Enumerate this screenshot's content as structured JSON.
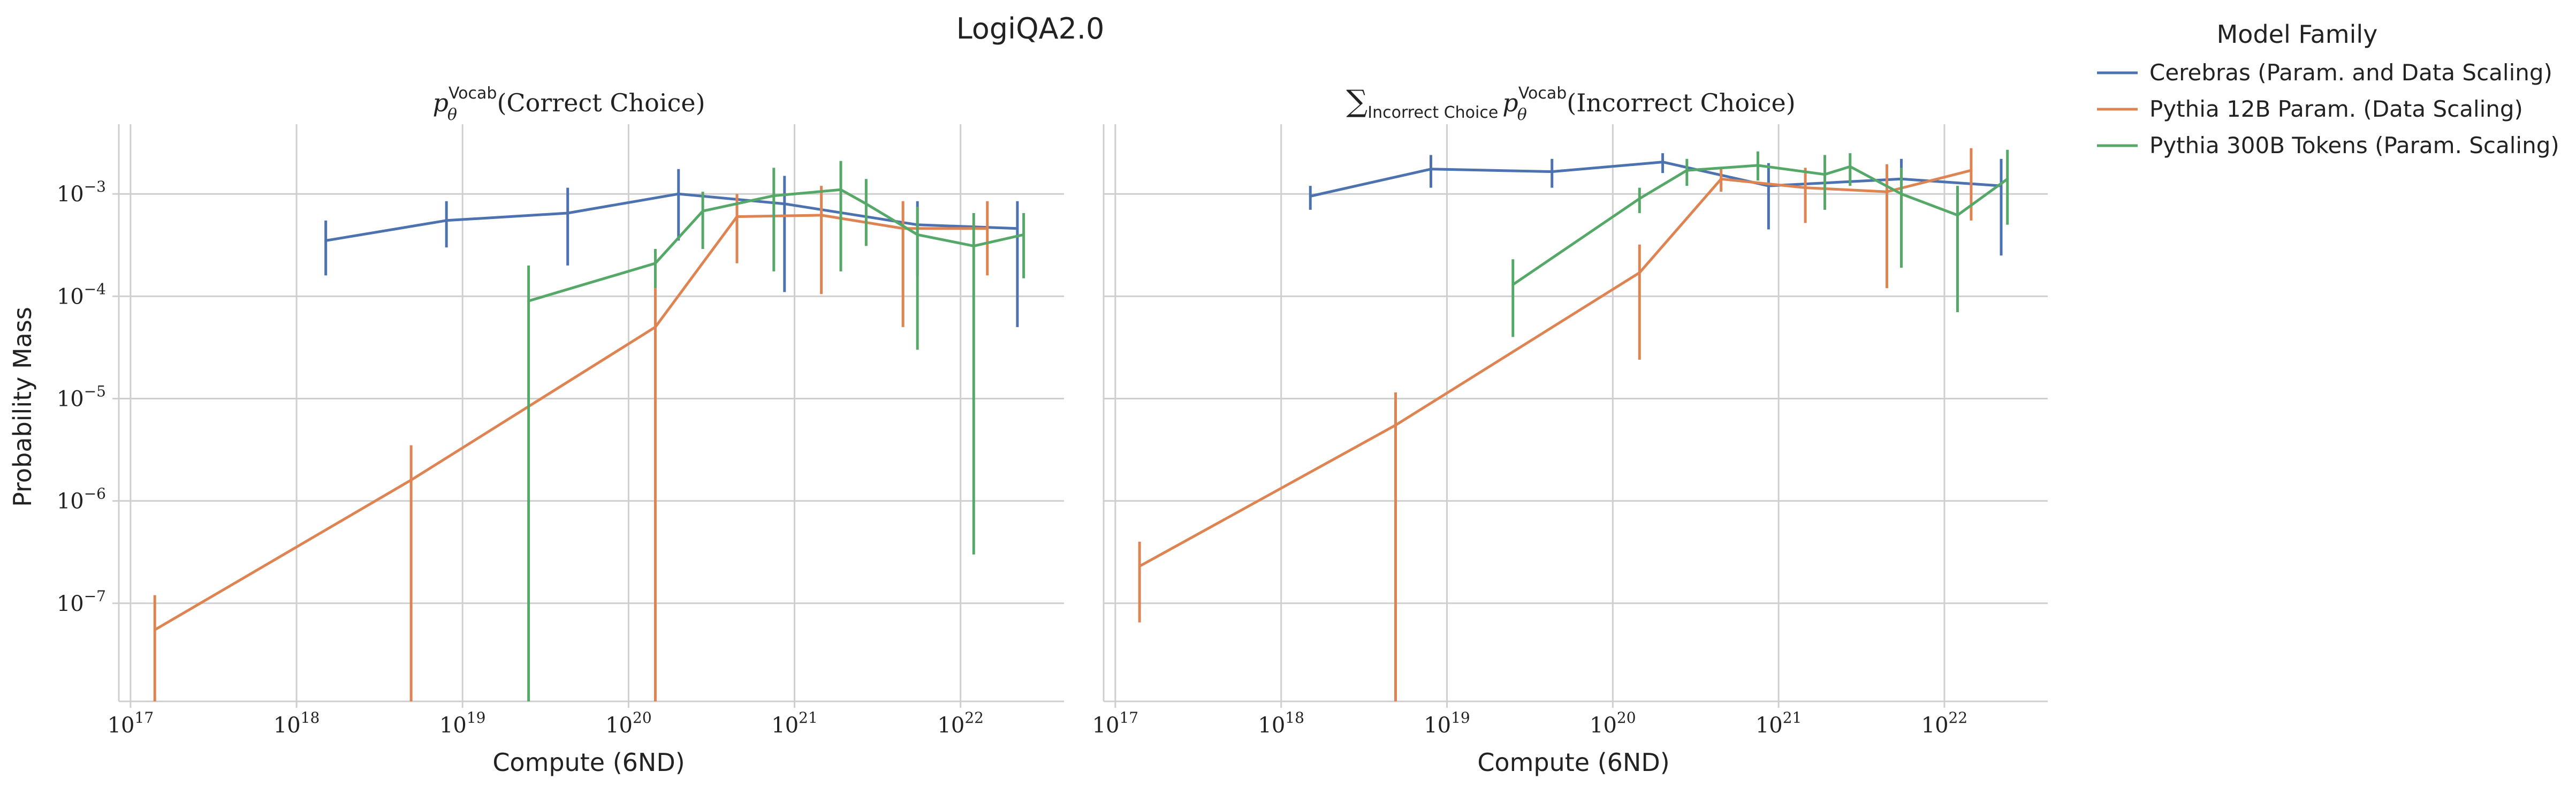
{
  "figure": {
    "title": "LogiQA2.0",
    "legend_title": "Model Family",
    "legend_placement": "outside-right",
    "y_axis_label": "Probability Mass"
  },
  "chart_data": [
    {
      "type": "line",
      "title": "p_θ^Vocab(Correct Choice)",
      "xlabel": "Compute (6ND)",
      "ylabel": "Probability Mass",
      "xscale": "log",
      "yscale": "log",
      "xlim": [
        8.5e+16,
        4.2e+22
      ],
      "ylim": [
        1.1e-08,
        0.0048
      ],
      "grid": true,
      "xticks": [
        "10^17",
        "10^18",
        "10^19",
        "10^20",
        "10^21",
        "10^22"
      ],
      "yticks": [
        "10^-7",
        "10^-6",
        "10^-5",
        "10^-4",
        "10^-3"
      ],
      "series": [
        {
          "name": "Cerebras (Param. and Data Scaling)",
          "color": "#4c72b0",
          "points": [
            {
              "x": 1.5e+18,
              "y": 0.00035,
              "lo": 0.00016,
              "hi": 0.00055
            },
            {
              "x": 8e+18,
              "y": 0.00055,
              "lo": 0.0003,
              "hi": 0.00085
            },
            {
              "x": 4.3e+19,
              "y": 0.00065,
              "lo": 0.0002,
              "hi": 0.00115
            },
            {
              "x": 2e+20,
              "y": 0.001,
              "lo": 0.00035,
              "hi": 0.00175
            },
            {
              "x": 8.7e+20,
              "y": 0.0008,
              "lo": 0.00011,
              "hi": 0.0015
            },
            {
              "x": 5.5e+21,
              "y": 0.0005,
              "lo": 0.00016,
              "hi": 0.00085
            },
            {
              "x": 2.2e+22,
              "y": 0.00046,
              "lo": 5e-05,
              "hi": 0.00085
            }
          ]
        },
        {
          "name": "Pythia 12B Param. (Data Scaling)",
          "color": "#dd8452",
          "points": [
            {
              "x": 1.4e+17,
              "y": 5.5e-08,
              "lo": 1e-08,
              "hi": 1.2e-07
            },
            {
              "x": 4.9e+18,
              "y": 1.6e-06,
              "lo": 1e-08,
              "hi": 3.5e-06
            },
            {
              "x": 1.45e+20,
              "y": 5e-05,
              "lo": 1e-08,
              "hi": 0.00012
            },
            {
              "x": 4.5e+20,
              "y": 0.0006,
              "lo": 0.00021,
              "hi": 0.001
            },
            {
              "x": 1.45e+21,
              "y": 0.00062,
              "lo": 0.000105,
              "hi": 0.0012
            },
            {
              "x": 4.5e+21,
              "y": 0.00046,
              "lo": 5e-05,
              "hi": 0.00085
            },
            {
              "x": 1.45e+22,
              "y": 0.00046,
              "lo": 0.00016,
              "hi": 0.00085
            }
          ]
        },
        {
          "name": "Pythia 300B Tokens (Param. Scaling)",
          "color": "#55a868",
          "points": [
            {
              "x": 2.5e+19,
              "y": 9e-05,
              "lo": 1e-08,
              "hi": 0.0002
            },
            {
              "x": 1.45e+20,
              "y": 0.00021,
              "lo": 0.00012,
              "hi": 0.00029
            },
            {
              "x": 2.8e+20,
              "y": 0.00068,
              "lo": 0.00029,
              "hi": 0.00105
            },
            {
              "x": 7.5e+20,
              "y": 0.00096,
              "lo": 0.000175,
              "hi": 0.0018
            },
            {
              "x": 1.9e+21,
              "y": 0.0011,
              "lo": 0.000175,
              "hi": 0.0021
            },
            {
              "x": 2.7e+21,
              "y": 0.0008,
              "lo": 0.00031,
              "hi": 0.0014
            },
            {
              "x": 5.5e+21,
              "y": 0.0004,
              "lo": 3e-05,
              "hi": 0.00075
            },
            {
              "x": 1.2e+22,
              "y": 0.00031,
              "lo": 3e-07,
              "hi": 0.00065
            },
            {
              "x": 2.4e+22,
              "y": 0.0004,
              "lo": 0.00015,
              "hi": 0.00065
            }
          ]
        }
      ]
    },
    {
      "type": "line",
      "title": "∑_Incorrect Choice p_θ^Vocab(Incorrect Choice)",
      "xlabel": "Compute (6ND)",
      "ylabel": "",
      "xscale": "log",
      "yscale": "log",
      "xlim": [
        8.5e+16,
        4.2e+22
      ],
      "ylim": [
        1.1e-08,
        0.0048
      ],
      "grid": true,
      "xticks": [
        "10^17",
        "10^18",
        "10^19",
        "10^20",
        "10^21",
        "10^22"
      ],
      "yticks": [],
      "series": [
        {
          "name": "Cerebras (Param. and Data Scaling)",
          "color": "#4c72b0",
          "points": [
            {
              "x": 1.5e+18,
              "y": 0.00095,
              "lo": 0.0007,
              "hi": 0.0012
            },
            {
              "x": 8e+18,
              "y": 0.00175,
              "lo": 0.00115,
              "hi": 0.0024
            },
            {
              "x": 4.3e+19,
              "y": 0.00165,
              "lo": 0.00115,
              "hi": 0.0022
            },
            {
              "x": 2e+20,
              "y": 0.00205,
              "lo": 0.0016,
              "hi": 0.0025
            },
            {
              "x": 8.7e+20,
              "y": 0.0012,
              "lo": 0.00045,
              "hi": 0.002
            },
            {
              "x": 5.5e+21,
              "y": 0.0014,
              "lo": 0.0007,
              "hi": 0.0022
            },
            {
              "x": 2.2e+22,
              "y": 0.0012,
              "lo": 0.00025,
              "hi": 0.0022
            }
          ]
        },
        {
          "name": "Pythia 12B Param. (Data Scaling)",
          "color": "#dd8452",
          "points": [
            {
              "x": 1.4e+17,
              "y": 2.3e-07,
              "lo": 6.5e-08,
              "hi": 4e-07
            },
            {
              "x": 4.9e+18,
              "y": 5.5e-06,
              "lo": 1e-08,
              "hi": 1.15e-05
            },
            {
              "x": 1.45e+20,
              "y": 0.00017,
              "lo": 2.4e-05,
              "hi": 0.00032
            },
            {
              "x": 4.5e+20,
              "y": 0.0014,
              "lo": 0.00105,
              "hi": 0.00175
            },
            {
              "x": 1.45e+21,
              "y": 0.00115,
              "lo": 0.00052,
              "hi": 0.0018
            },
            {
              "x": 4.5e+21,
              "y": 0.00105,
              "lo": 0.00012,
              "hi": 0.00195
            },
            {
              "x": 1.45e+22,
              "y": 0.0017,
              "lo": 0.00055,
              "hi": 0.0028
            }
          ]
        },
        {
          "name": "Pythia 300B Tokens (Param. Scaling)",
          "color": "#55a868",
          "points": [
            {
              "x": 2.5e+19,
              "y": 0.00013,
              "lo": 4e-05,
              "hi": 0.00023
            },
            {
              "x": 1.45e+20,
              "y": 0.0009,
              "lo": 0.00065,
              "hi": 0.00115
            },
            {
              "x": 2.8e+20,
              "y": 0.0017,
              "lo": 0.0012,
              "hi": 0.0022
            },
            {
              "x": 7.5e+20,
              "y": 0.0019,
              "lo": 0.00135,
              "hi": 0.0026
            },
            {
              "x": 1.9e+21,
              "y": 0.00155,
              "lo": 0.0007,
              "hi": 0.0024
            },
            {
              "x": 2.7e+21,
              "y": 0.00185,
              "lo": 0.0012,
              "hi": 0.0025
            },
            {
              "x": 5.5e+21,
              "y": 0.001,
              "lo": 0.00019,
              "hi": 0.0018
            },
            {
              "x": 1.2e+22,
              "y": 0.00062,
              "lo": 7e-05,
              "hi": 0.0012
            },
            {
              "x": 2.4e+22,
              "y": 0.0014,
              "lo": 0.0005,
              "hi": 0.0027
            }
          ]
        }
      ]
    }
  ]
}
